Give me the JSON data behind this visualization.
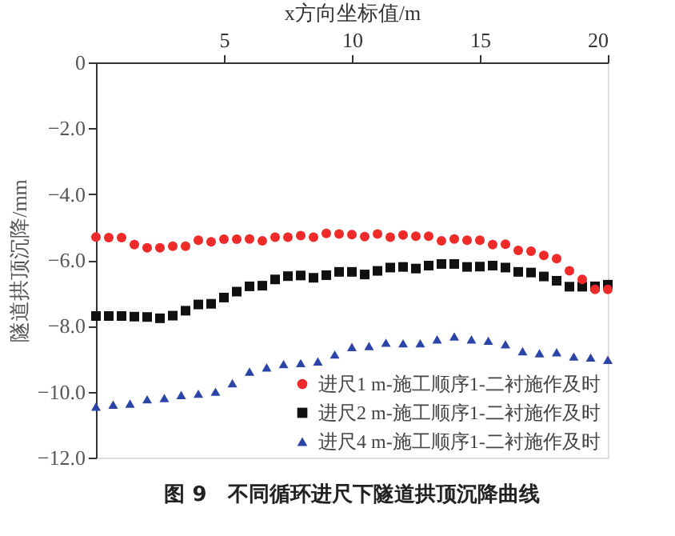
{
  "chart_data": {
    "type": "scatter",
    "xlabel": "x方向坐标值/m",
    "ylabel": "隧道拱顶沉降/mm",
    "annotations": [
      "图 9　不同循环进尺下隧道拱顶沉降曲线"
    ],
    "xlim": [
      0,
      20
    ],
    "xticks": [
      5,
      10,
      15,
      20
    ],
    "ylim": [
      -12,
      0
    ],
    "yticks": [
      0,
      {
        "value": -2,
        "label": "−2.0"
      },
      {
        "value": -4,
        "label": "−4.0"
      },
      {
        "value": -6,
        "label": "−6.0"
      },
      {
        "value": -8,
        "label": "−8.0"
      },
      {
        "value": -10,
        "label": "−10.0"
      },
      {
        "value": -12,
        "label": "−12.0"
      }
    ],
    "grid": false,
    "legend": "bottom right",
    "series": [
      {
        "name": "进尺1 m-施工顺序1-二衬施作及时",
        "color": "#ee2a2a",
        "marker": "circle",
        "x": [
          0,
          0.5,
          1,
          1.5,
          2,
          2.5,
          3,
          3.5,
          4,
          4.5,
          5,
          5.5,
          6,
          6.5,
          7,
          7.5,
          8,
          8.5,
          9,
          9.5,
          10,
          10.5,
          11,
          11.5,
          12,
          12.5,
          13,
          13.5,
          14,
          14.5,
          15,
          15.5,
          16,
          16.5,
          17,
          17.5,
          18,
          18.5,
          19,
          19.5,
          20
        ],
        "values": [
          -5.3,
          -5.32,
          -5.32,
          -5.53,
          -5.63,
          -5.63,
          -5.58,
          -5.58,
          -5.4,
          -5.45,
          -5.37,
          -5.37,
          -5.36,
          -5.42,
          -5.31,
          -5.31,
          -5.26,
          -5.31,
          -5.19,
          -5.21,
          -5.23,
          -5.29,
          -5.21,
          -5.31,
          -5.24,
          -5.28,
          -5.28,
          -5.42,
          -5.36,
          -5.4,
          -5.4,
          -5.53,
          -5.52,
          -5.71,
          -5.73,
          -5.86,
          -5.96,
          -6.33,
          -6.59,
          -6.89,
          -6.89
        ]
      },
      {
        "name": "进尺2 m-施工顺序1-二衬施作及时",
        "color": "#111111",
        "marker": "square",
        "x": [
          0,
          0.5,
          1,
          1.5,
          2,
          2.5,
          3,
          3.5,
          4,
          4.5,
          5,
          5.5,
          6,
          6.5,
          7,
          7.5,
          8,
          8.5,
          9,
          9.5,
          10,
          10.5,
          11,
          11.5,
          12,
          12.5,
          13,
          13.5,
          14,
          14.5,
          15,
          15.5,
          16,
          16.5,
          17,
          17.5,
          18,
          18.5,
          19,
          19.5,
          20
        ],
        "values": [
          -7.7,
          -7.7,
          -7.7,
          -7.72,
          -7.73,
          -7.77,
          -7.69,
          -7.54,
          -7.35,
          -7.33,
          -7.14,
          -6.96,
          -6.8,
          -6.78,
          -6.59,
          -6.49,
          -6.47,
          -6.54,
          -6.46,
          -6.36,
          -6.36,
          -6.44,
          -6.33,
          -6.23,
          -6.21,
          -6.26,
          -6.17,
          -6.12,
          -6.12,
          -6.21,
          -6.2,
          -6.17,
          -6.23,
          -6.36,
          -6.38,
          -6.5,
          -6.63,
          -6.81,
          -6.81,
          -6.8,
          -6.75
        ]
      },
      {
        "name": "进尺4 m-施工顺序1-二衬施作及时",
        "color": "#2b44a8",
        "marker": "triangle",
        "x": [
          0,
          0.67,
          1.33,
          2,
          2.67,
          3.33,
          4,
          4.67,
          5.33,
          6,
          6.67,
          7.33,
          8,
          8.67,
          9.33,
          10,
          10.67,
          11.33,
          12,
          12.67,
          13.33,
          14,
          14.67,
          15.33,
          16,
          16.67,
          17.33,
          18,
          18.67,
          19.33,
          20
        ],
        "values": [
          -10.45,
          -10.39,
          -10.36,
          -10.23,
          -10.19,
          -10.1,
          -10.06,
          -10.0,
          -9.74,
          -9.39,
          -9.26,
          -9.16,
          -9.13,
          -9.08,
          -8.87,
          -8.64,
          -8.61,
          -8.51,
          -8.53,
          -8.53,
          -8.41,
          -8.32,
          -8.41,
          -8.45,
          -8.56,
          -8.77,
          -8.83,
          -8.8,
          -8.93,
          -8.96,
          -9.03
        ]
      }
    ]
  }
}
